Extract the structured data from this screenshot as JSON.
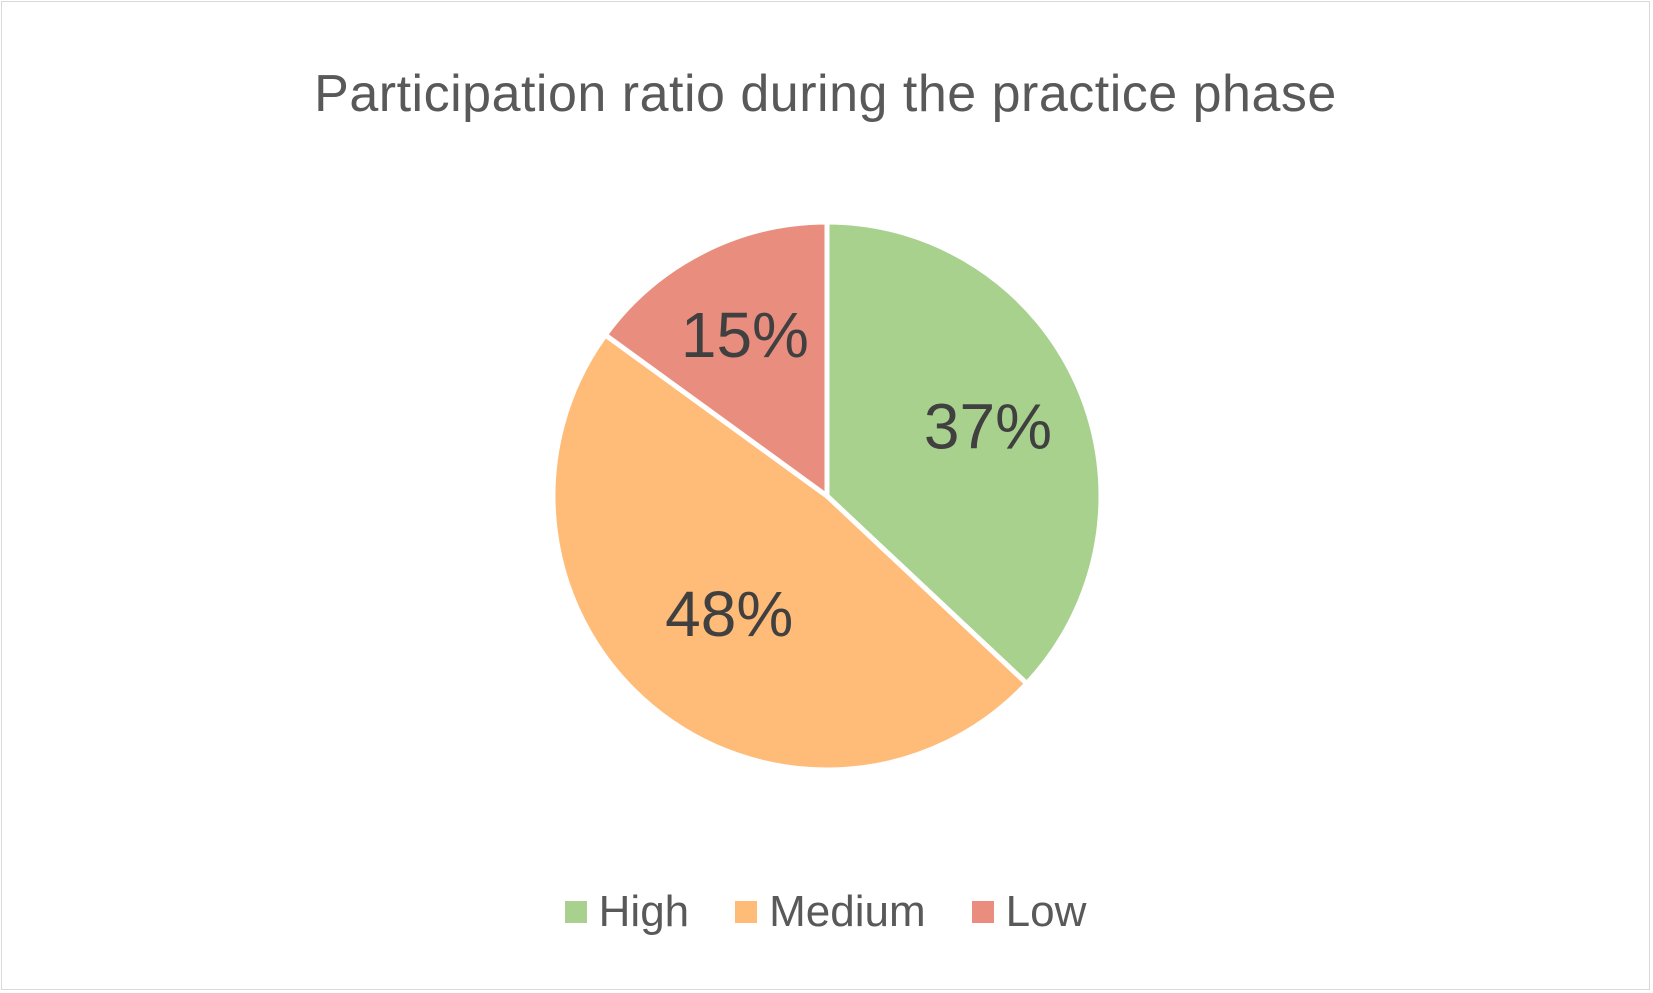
{
  "chart_data": {
    "type": "pie",
    "title": "Participation ratio during the practice phase",
    "slices": [
      {
        "name": "High",
        "value": 37,
        "label": "37%",
        "color": "#a9d18e"
      },
      {
        "name": "Medium",
        "value": 48,
        "label": "48%",
        "color": "#ffbb78"
      },
      {
        "name": "Low",
        "value": 15,
        "label": "15%",
        "color": "#e98e7e"
      }
    ],
    "start_angle_deg": 0,
    "direction": "clockwise",
    "legend_position": "bottom"
  }
}
